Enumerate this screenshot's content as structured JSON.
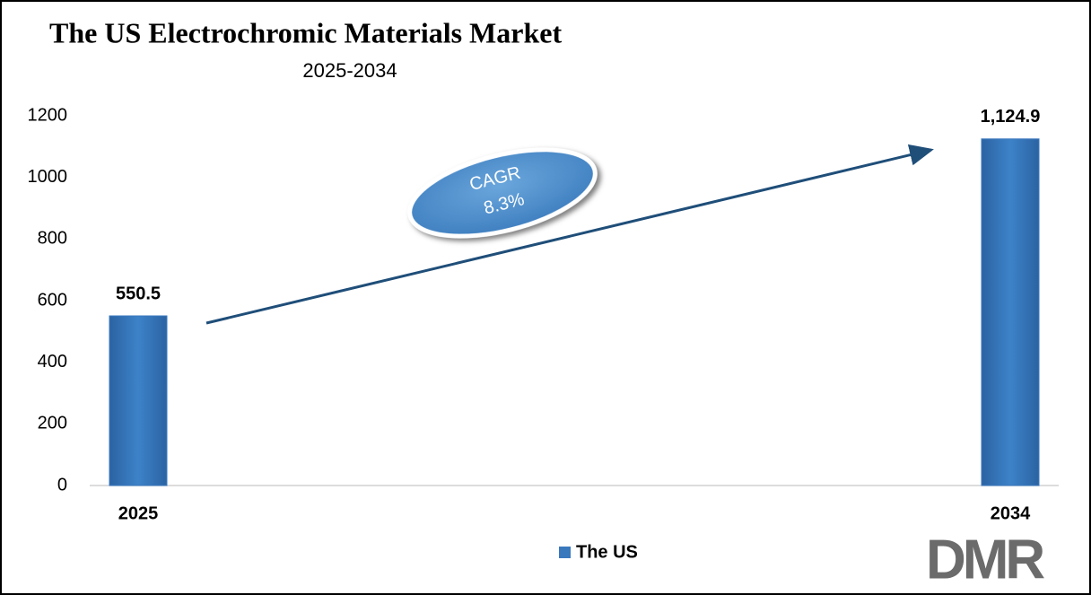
{
  "chart_data": {
    "type": "bar",
    "title": "The US Electrochromic Materials Market",
    "subtitle": "2025-2034",
    "categories": [
      "2025",
      "2034"
    ],
    "series": [
      {
        "name": "The US",
        "color": "#3a78be",
        "values": [
          550.5,
          1124.9
        ],
        "value_labels": [
          "550.5",
          "1,124.9"
        ]
      }
    ],
    "ylim": [
      0,
      1200
    ],
    "yticks": [
      0,
      200,
      400,
      600,
      800,
      1000,
      1200
    ],
    "grid": false,
    "annotation": [
      "CAGR",
      "8.3%"
    ],
    "legend": "bottom",
    "logo": "DMR"
  }
}
